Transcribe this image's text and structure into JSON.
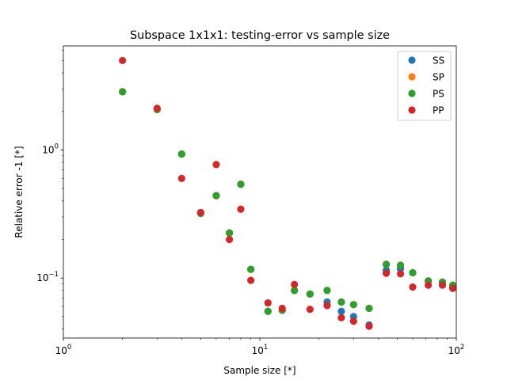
{
  "chart_data": {
    "type": "scatter",
    "title": "Subspace 1x1x1: testing-error vs sample size",
    "xlabel": "Sample size [*]",
    "ylabel": "Relative error -1 [*]",
    "xscale": "log",
    "yscale": "log",
    "xlim": [
      1,
      100
    ],
    "ylim": [
      0.034,
      6.5
    ],
    "x_ticks": [
      {
        "value": 1,
        "base": "10",
        "exp": "0"
      },
      {
        "value": 10,
        "base": "10",
        "exp": "1"
      },
      {
        "value": 100,
        "base": "10",
        "exp": "2"
      }
    ],
    "y_ticks": [
      {
        "value": 0.1,
        "base": "10",
        "exp": "−1"
      },
      {
        "value": 1,
        "base": "10",
        "exp": "0"
      }
    ],
    "legend_position": "top-right",
    "grid": false,
    "x": [
      2,
      3,
      4,
      5,
      6,
      7,
      8,
      9,
      11,
      13,
      15,
      18,
      22,
      26,
      30,
      36,
      44,
      52,
      60,
      72,
      85,
      96
    ],
    "series": [
      {
        "name": "SS",
        "color": "#1f77b4",
        "values": [
          2.85,
          2.07,
          0.93,
          0.32,
          0.44,
          0.225,
          0.54,
          0.117,
          0.055,
          0.056,
          0.08,
          0.075,
          0.065,
          0.055,
          0.05,
          0.043,
          0.115,
          0.118,
          0.11,
          0.095,
          0.093,
          0.086
        ]
      },
      {
        "name": "SP",
        "color": "#ff7f0e",
        "values": [
          2.85,
          2.07,
          0.93,
          0.32,
          0.44,
          0.225,
          0.54,
          0.117,
          0.055,
          0.056,
          0.08,
          0.075,
          0.08,
          0.065,
          0.062,
          0.058,
          0.128,
          0.126,
          0.11,
          0.095,
          0.093,
          0.088
        ]
      },
      {
        "name": "PS",
        "color": "#2ca02c",
        "values": [
          2.85,
          2.07,
          0.93,
          0.32,
          0.44,
          0.225,
          0.54,
          0.117,
          0.055,
          0.056,
          0.08,
          0.075,
          0.08,
          0.065,
          0.062,
          0.058,
          0.128,
          0.126,
          0.11,
          0.095,
          0.093,
          0.088
        ]
      },
      {
        "name": "PP",
        "color": "#d62728",
        "values": [
          5.0,
          2.12,
          0.6,
          0.325,
          0.77,
          0.2,
          0.345,
          0.096,
          0.064,
          0.058,
          0.089,
          0.057,
          0.061,
          0.049,
          0.046,
          0.042,
          0.109,
          0.108,
          0.085,
          0.088,
          0.088,
          0.083
        ]
      }
    ]
  }
}
